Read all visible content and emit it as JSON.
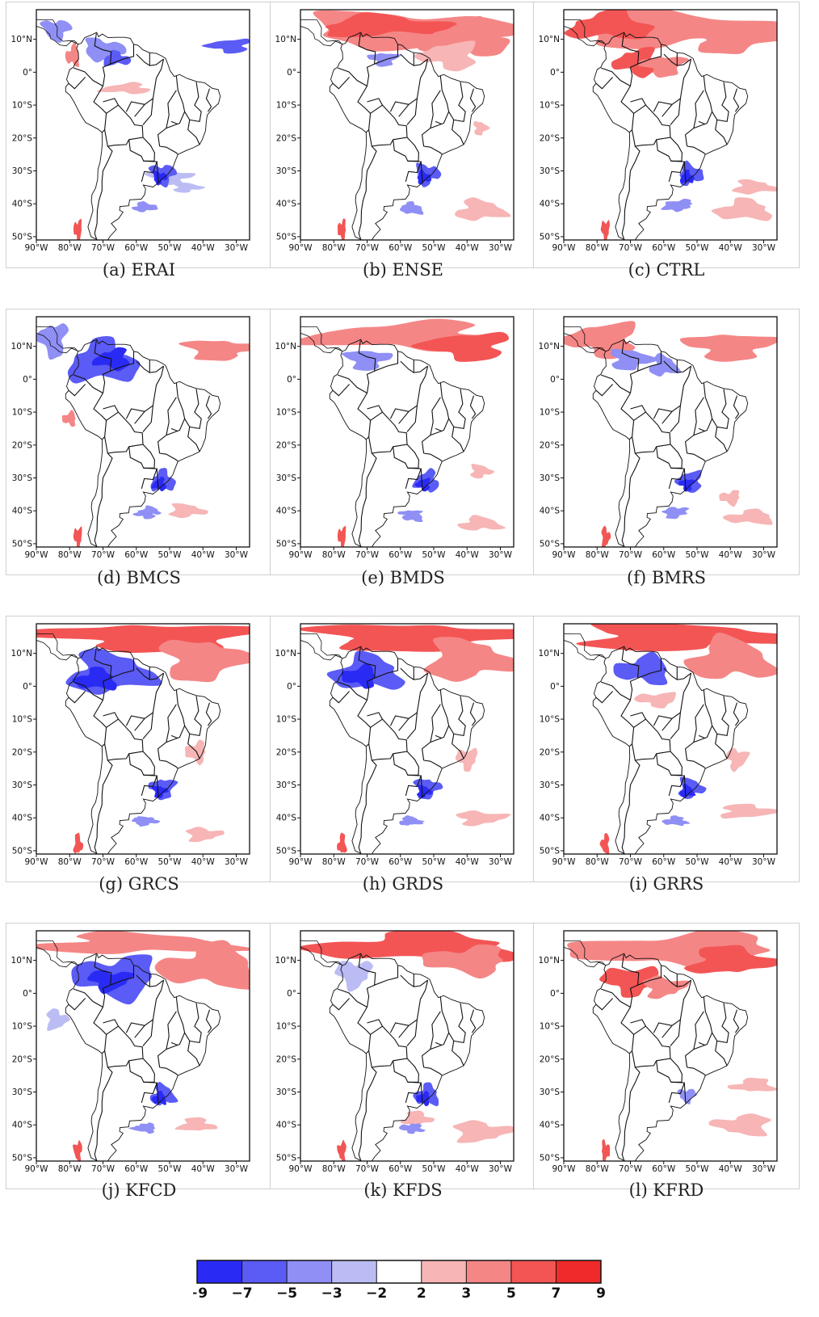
{
  "figure": {
    "panels": [
      {
        "id": "a",
        "caption": "(a) ERAI"
      },
      {
        "id": "b",
        "caption": "(b) ENSE"
      },
      {
        "id": "c",
        "caption": "(c) CTRL"
      },
      {
        "id": "d",
        "caption": "(d) BMCS"
      },
      {
        "id": "e",
        "caption": "(e) BMDS"
      },
      {
        "id": "f",
        "caption": "(f) BMRS"
      },
      {
        "id": "g",
        "caption": "(g) GRCS"
      },
      {
        "id": "h",
        "caption": "(h) GRDS"
      },
      {
        "id": "i",
        "caption": "(i) GRRS"
      },
      {
        "id": "j",
        "caption": "(j) KFCD"
      },
      {
        "id": "k",
        "caption": "(k) KFDS"
      },
      {
        "id": "l",
        "caption": "(l) KFRD"
      }
    ],
    "lat_ticks": [
      "10°N",
      "0°",
      "10°S",
      "20°S",
      "30°S",
      "40°S",
      "50°S"
    ],
    "lon_ticks": [
      "90°W",
      "80°W",
      "70°W",
      "60°W",
      "50°W",
      "40°W",
      "30°W"
    ],
    "colorbar": {
      "ticks": [
        "−9",
        "−7",
        "−5",
        "−3",
        "−2",
        "2",
        "3",
        "5",
        "7",
        "9"
      ],
      "colors": [
        "#2a2af5",
        "#5b5bf5",
        "#8f8ff5",
        "#bcbcf5",
        "#ffffff",
        "#f7b5b5",
        "#f58686",
        "#f35555",
        "#f02a2a"
      ]
    }
  }
}
